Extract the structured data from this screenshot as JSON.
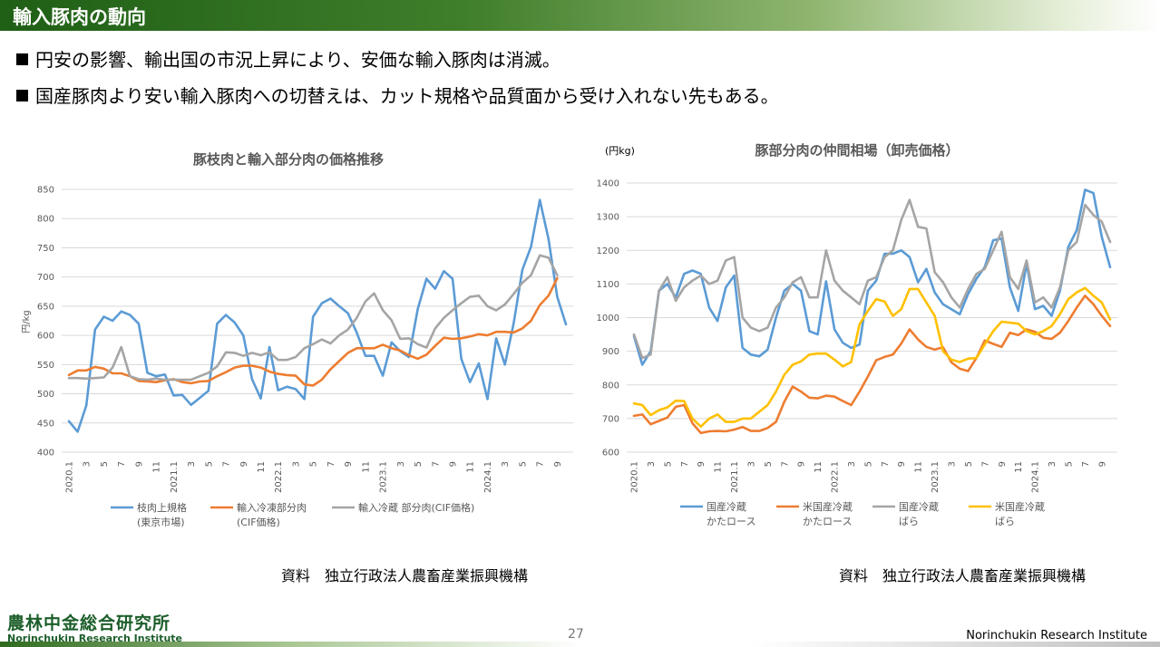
{
  "header": {
    "title": "輸入豚肉の動向"
  },
  "bullets": [
    "円安の影響、輸出国の市況上昇により、安価な輸入豚肉は消滅。",
    "国産豚肉より安い輸入豚肉への切替えは、カット規格や品質面から受け入れない先もある。"
  ],
  "sources": {
    "left": "資料　独立行政法人農畜産業振興機構",
    "right": "資料　独立行政法人農畜産業振興機構"
  },
  "logo": {
    "jp": "農林中金総合研究所",
    "en": "Norinchukin Research Institute"
  },
  "footer": {
    "page": "27",
    "org": "Norinchukin Research Institute"
  },
  "colors": {
    "blue": "#5b9bd5",
    "orange": "#ed7d31",
    "gray": "#a5a5a5",
    "yellow": "#ffc000",
    "title_gray": "#595959"
  },
  "chart_data": [
    {
      "type": "line",
      "title": "豚枝肉と輸入部分肉の価格推移",
      "ylabel": "円/kg",
      "ylim": [
        400,
        850
      ],
      "yticks": [
        400,
        450,
        500,
        550,
        600,
        650,
        700,
        750,
        800,
        850
      ],
      "x_tick_labels": [
        "2020.1",
        "3",
        "5",
        "7",
        "9",
        "11",
        "2021.1",
        "3",
        "5",
        "7",
        "9",
        "11",
        "2022.1",
        "3",
        "5",
        "7",
        "9",
        "11",
        "2023.1",
        "3",
        "5",
        "7",
        "9",
        "11",
        "2024.1",
        "3",
        "5",
        "7",
        "9"
      ],
      "series": [
        {
          "name": "枝肉上規格\n(東京市場)",
          "legend": [
            "枝肉上規格",
            "(東京市場)"
          ],
          "color": "#5b9bd5",
          "values": [
            453,
            435,
            480,
            610,
            632,
            625,
            641,
            635,
            620,
            536,
            530,
            533,
            497,
            498,
            481,
            493,
            505,
            620,
            635,
            622,
            600,
            525,
            492,
            580,
            506,
            512,
            508,
            491,
            632,
            655,
            663,
            650,
            638,
            605,
            565,
            565,
            531,
            588,
            573,
            563,
            645,
            697,
            680,
            710,
            697,
            560,
            520,
            552,
            491,
            595,
            550,
            620,
            712,
            752,
            832,
            765,
            666,
            619
          ]
        },
        {
          "name": "輸入冷凍部分肉\n(CIF価格)",
          "legend": [
            "輸入冷凍部分肉",
            "(CIF価格)"
          ],
          "color": "#ed7d31",
          "values": [
            532,
            540,
            540,
            546,
            543,
            535,
            535,
            530,
            522,
            521,
            520,
            523,
            525,
            520,
            518,
            521,
            522,
            530,
            537,
            545,
            548,
            548,
            545,
            538,
            534,
            532,
            531,
            516,
            514,
            524,
            542,
            556,
            570,
            578,
            578,
            578,
            584,
            578,
            574,
            566,
            560,
            567,
            582,
            596,
            594,
            595,
            598,
            602,
            600,
            606,
            606,
            605,
            612,
            625,
            652,
            668,
            698
          ]
        },
        {
          "name": "輸入冷蔵 部分肉(CIF価格)",
          "legend": [
            "輸入冷蔵 部分肉(CIF価格)"
          ],
          "color": "#a5a5a5",
          "values": [
            527,
            527,
            526,
            527,
            528,
            545,
            580,
            530,
            525,
            524,
            526,
            524,
            524,
            524,
            524,
            530,
            536,
            547,
            571,
            570,
            565,
            570,
            566,
            571,
            558,
            558,
            563,
            578,
            585,
            593,
            586,
            600,
            610,
            630,
            658,
            672,
            643,
            626,
            594,
            595,
            585,
            579,
            612,
            630,
            643,
            655,
            666,
            668,
            650,
            643,
            653,
            671,
            690,
            703,
            737,
            733,
            703
          ]
        }
      ]
    },
    {
      "type": "line",
      "title": "豚部分肉の仲間相場（卸売価格）",
      "ylabel": "(円kg)",
      "ylim": [
        600,
        1400
      ],
      "yticks": [
        600,
        700,
        800,
        900,
        1000,
        1100,
        1200,
        1300,
        1400
      ],
      "x_tick_labels": [
        "2020.1",
        "3",
        "5",
        "7",
        "9",
        "11",
        "2021.1",
        "3",
        "5",
        "7",
        "9",
        "11",
        "2022.1",
        "3",
        "5",
        "7",
        "9",
        "11",
        "2023.1",
        "3",
        "5",
        "7",
        "9",
        "11",
        "2024.1",
        "3",
        "5",
        "7",
        "9"
      ],
      "series": [
        {
          "name": "国産冷蔵\nかたロース",
          "legend": [
            "国産冷蔵",
            "かたロース"
          ],
          "color": "#5b9bd5",
          "values": [
            945,
            860,
            900,
            1080,
            1100,
            1060,
            1130,
            1140,
            1130,
            1030,
            990,
            1090,
            1125,
            910,
            890,
            885,
            905,
            1000,
            1080,
            1100,
            1080,
            960,
            950,
            1108,
            965,
            925,
            910,
            920,
            1080,
            1110,
            1190,
            1190,
            1200,
            1180,
            1105,
            1145,
            1075,
            1040,
            1025,
            1010,
            1070,
            1115,
            1150,
            1230,
            1235,
            1090,
            1020,
            1160,
            1025,
            1035,
            1005,
            1080,
            1210,
            1260,
            1380,
            1370,
            1240,
            1150
          ]
        },
        {
          "name": "米国産冷蔵\nかたロース",
          "legend": [
            "米国産冷蔵",
            "かたロース"
          ],
          "color": "#ed7d31",
          "values": [
            708,
            712,
            683,
            693,
            703,
            735,
            740,
            686,
            657,
            662,
            663,
            662,
            667,
            675,
            663,
            663,
            672,
            690,
            750,
            795,
            780,
            762,
            760,
            768,
            765,
            752,
            740,
            780,
            825,
            873,
            883,
            890,
            923,
            965,
            935,
            913,
            905,
            912,
            867,
            848,
            841,
            880,
            932,
            922,
            913,
            955,
            948,
            965,
            958,
            940,
            937,
            955,
            990,
            1030,
            1065,
            1040,
            1005,
            975
          ]
        },
        {
          "name": "国産冷蔵\nばら",
          "legend": [
            "国産冷蔵",
            "ばら"
          ],
          "color": "#a5a5a5",
          "values": [
            950,
            880,
            890,
            1080,
            1120,
            1050,
            1090,
            1110,
            1125,
            1100,
            1110,
            1170,
            1180,
            1000,
            970,
            960,
            970,
            1030,
            1060,
            1105,
            1120,
            1060,
            1060,
            1200,
            1110,
            1080,
            1060,
            1040,
            1110,
            1120,
            1180,
            1200,
            1290,
            1350,
            1270,
            1265,
            1135,
            1105,
            1060,
            1030,
            1085,
            1130,
            1145,
            1200,
            1255,
            1120,
            1085,
            1170,
            1045,
            1060,
            1030,
            1090,
            1200,
            1225,
            1335,
            1305,
            1285,
            1225
          ]
        },
        {
          "name": "米国産冷蔵\nばら",
          "legend": [
            "米国産冷蔵",
            "ばら"
          ],
          "color": "#ffc000",
          "values": [
            745,
            740,
            710,
            725,
            733,
            753,
            752,
            700,
            676,
            700,
            712,
            690,
            690,
            700,
            700,
            720,
            740,
            780,
            830,
            860,
            870,
            890,
            893,
            893,
            875,
            855,
            868,
            980,
            1020,
            1055,
            1048,
            1005,
            1025,
            1085,
            1085,
            1045,
            1005,
            900,
            875,
            868,
            878,
            880,
            920,
            960,
            988,
            985,
            982,
            960,
            950,
            960,
            975,
            1010,
            1055,
            1075,
            1088,
            1065,
            1045,
            995
          ]
        }
      ]
    }
  ]
}
